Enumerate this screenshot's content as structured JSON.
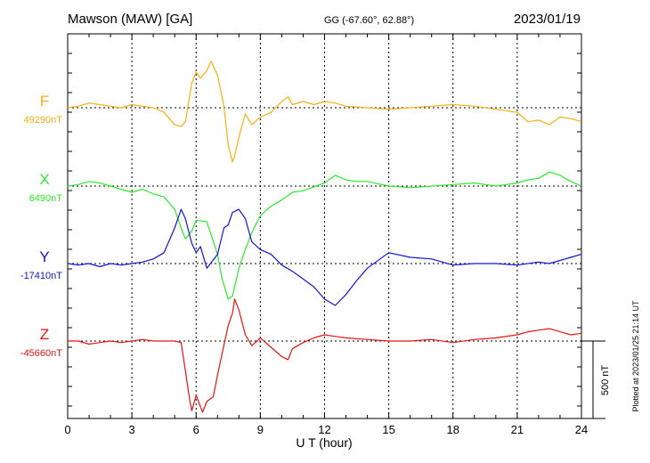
{
  "header": {
    "station": "Mawson (MAW)  [GA]",
    "coords": "GG (-67.60°,  62.88°)",
    "date": "2023/01/19"
  },
  "chart_data": {
    "type": "line",
    "title": "Mawson (MAW)  [GA]",
    "xlabel": "U T (hour)",
    "ylabel": "",
    "xlim": [
      0,
      24
    ],
    "xticks": [
      0,
      3,
      6,
      9,
      12,
      15,
      18,
      21,
      24
    ],
    "grid": true,
    "scale_bar": {
      "label": "500 nT",
      "value_nT": 500
    },
    "footer": "Plotted at 2023/01/25 21:14 UT",
    "series": [
      {
        "name": "F",
        "baseline_label": "49290nT",
        "baseline_nT": 49290,
        "color": "#f5b014",
        "x": [
          0,
          0.5,
          1,
          1.5,
          2,
          2.5,
          3,
          3.5,
          4,
          4.5,
          5,
          5.3,
          5.5,
          5.8,
          6,
          6.2,
          6.5,
          6.7,
          7,
          7.3,
          7.5,
          7.7,
          7.8,
          8,
          8.3,
          8.6,
          9,
          9.5,
          10,
          10.3,
          10.5,
          11,
          11.5,
          12,
          12.5,
          13,
          14,
          15,
          16,
          17,
          18,
          19,
          20,
          21,
          21.5,
          22,
          22.5,
          23,
          23.5,
          24
        ],
        "values": [
          49290,
          49300,
          49320,
          49310,
          49300,
          49290,
          49310,
          49300,
          49290,
          49260,
          49180,
          49170,
          49200,
          49450,
          49520,
          49480,
          49530,
          49590,
          49500,
          49300,
          49050,
          48940,
          48980,
          49100,
          49250,
          49180,
          49230,
          49260,
          49330,
          49360,
          49310,
          49330,
          49310,
          49330,
          49320,
          49300,
          49290,
          49280,
          49290,
          49300,
          49310,
          49300,
          49280,
          49260,
          49200,
          49210,
          49180,
          49230,
          49220,
          49200
        ]
      },
      {
        "name": "X",
        "baseline_label": "6490nT",
        "baseline_nT": 6490,
        "color": "#2ee82e",
        "x": [
          0,
          0.5,
          1,
          1.5,
          2,
          2.5,
          3,
          3.5,
          4,
          4.5,
          5,
          5.3,
          5.5,
          5.8,
          6,
          6.5,
          7,
          7.2,
          7.5,
          7.7,
          8,
          8.3,
          8.6,
          9,
          9.5,
          10,
          10.5,
          11,
          12,
          12.5,
          13,
          13.5,
          14,
          15,
          16,
          17,
          18,
          19,
          20,
          21,
          21.5,
          22,
          22.5,
          23,
          23.5,
          24
        ],
        "values": [
          6490,
          6500,
          6520,
          6510,
          6490,
          6470,
          6450,
          6470,
          6440,
          6420,
          6340,
          6220,
          6150,
          6200,
          6270,
          6260,
          6050,
          5900,
          5760,
          5780,
          5960,
          6080,
          6190,
          6300,
          6360,
          6400,
          6450,
          6460,
          6510,
          6560,
          6530,
          6520,
          6520,
          6490,
          6480,
          6490,
          6500,
          6510,
          6490,
          6510,
          6530,
          6540,
          6580,
          6560,
          6520,
          6490
        ]
      },
      {
        "name": "Y",
        "baseline_label": "-17410nT",
        "baseline_nT": -17410,
        "color": "#1414d2",
        "x": [
          0,
          0.5,
          1,
          1.5,
          2,
          2.5,
          3,
          3.5,
          4,
          4.5,
          5,
          5.3,
          5.5,
          5.8,
          6,
          6.2,
          6.5,
          7,
          7.3,
          7.5,
          7.7,
          8,
          8.3,
          8.6,
          9,
          9.5,
          10,
          10.5,
          11,
          11.5,
          12,
          12.5,
          13,
          13.5,
          14,
          15,
          16,
          17,
          18,
          19,
          20,
          21,
          22,
          22.5,
          23,
          23.5,
          24
        ],
        "values": [
          -17410,
          -17420,
          -17410,
          -17430,
          -17410,
          -17420,
          -17410,
          -17400,
          -17380,
          -17340,
          -17180,
          -17060,
          -17120,
          -17280,
          -17340,
          -17300,
          -17440,
          -17350,
          -17180,
          -17160,
          -17080,
          -17060,
          -17120,
          -17270,
          -17320,
          -17350,
          -17420,
          -17460,
          -17510,
          -17560,
          -17640,
          -17680,
          -17610,
          -17520,
          -17440,
          -17340,
          -17370,
          -17380,
          -17420,
          -17410,
          -17410,
          -17420,
          -17400,
          -17410,
          -17390,
          -17370,
          -17350
        ]
      },
      {
        "name": "Z",
        "baseline_label": "-45660nT",
        "baseline_nT": -45660,
        "color": "#e61414",
        "x": [
          0,
          0.5,
          1,
          1.5,
          2,
          2.5,
          3,
          3.5,
          4,
          4.5,
          5,
          5.3,
          5.5,
          5.7,
          5.8,
          6,
          6.3,
          6.5,
          6.8,
          7,
          7.2,
          7.5,
          7.7,
          7.8,
          8,
          8.3,
          8.6,
          9,
          9.5,
          10,
          10.3,
          10.5,
          11,
          11.5,
          12,
          12.5,
          13,
          14,
          15,
          16,
          17,
          18,
          19,
          20,
          21,
          21.5,
          22,
          22.5,
          23,
          23.5,
          24
        ],
        "values": [
          -45660,
          -45660,
          -45680,
          -45670,
          -45660,
          -45670,
          -45660,
          -45650,
          -45660,
          -45660,
          -45660,
          -45670,
          -45850,
          -46040,
          -46110,
          -46010,
          -46120,
          -46050,
          -46020,
          -45880,
          -45750,
          -45560,
          -45480,
          -45390,
          -45460,
          -45620,
          -45690,
          -45640,
          -45700,
          -45760,
          -45780,
          -45710,
          -45670,
          -45640,
          -45620,
          -45630,
          -45640,
          -45650,
          -45660,
          -45660,
          -45650,
          -45670,
          -45650,
          -45640,
          -45620,
          -45600,
          -45590,
          -45580,
          -45600,
          -45620,
          -45610
        ]
      }
    ]
  }
}
